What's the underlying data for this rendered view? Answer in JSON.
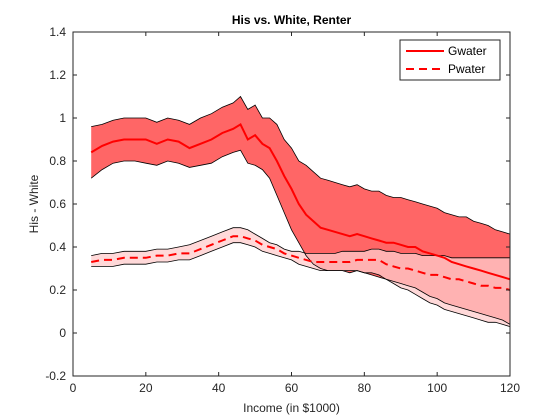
{
  "chart_data": {
    "type": "area",
    "title": "His vs. White, Renter",
    "xlabel": "Income (in $1000)",
    "ylabel": "His - White",
    "xlim": [
      0,
      120
    ],
    "ylim": [
      -0.2,
      1.4
    ],
    "xticks": [
      "0",
      "20",
      "40",
      "60",
      "80",
      "100",
      "120"
    ],
    "yticks": [
      "-0.2",
      "0",
      "0.2",
      "0.4",
      "0.6",
      "0.8",
      "1",
      "1.2",
      "1.4"
    ],
    "grid": false,
    "legend_position": "top-right",
    "x": [
      5,
      8,
      11,
      14,
      17,
      20,
      23,
      26,
      29,
      32,
      35,
      38,
      41,
      44,
      46,
      48,
      50,
      52,
      54,
      56,
      58,
      60,
      62,
      64,
      66,
      68,
      70,
      72,
      74,
      76,
      78,
      80,
      82,
      84,
      86,
      88,
      90,
      92,
      94,
      96,
      98,
      100,
      102,
      104,
      106,
      108,
      110,
      112,
      114,
      116,
      118,
      120
    ],
    "series": [
      {
        "name": "Gwater",
        "style": "solid",
        "color": "#ff0000",
        "band_color": "#ff6666",
        "values": [
          0.84,
          0.87,
          0.89,
          0.9,
          0.9,
          0.9,
          0.88,
          0.9,
          0.89,
          0.86,
          0.88,
          0.9,
          0.93,
          0.95,
          0.97,
          0.9,
          0.92,
          0.88,
          0.86,
          0.8,
          0.73,
          0.67,
          0.6,
          0.55,
          0.52,
          0.49,
          0.48,
          0.47,
          0.46,
          0.45,
          0.46,
          0.45,
          0.44,
          0.43,
          0.42,
          0.42,
          0.41,
          0.4,
          0.4,
          0.38,
          0.37,
          0.36,
          0.35,
          0.33,
          0.32,
          0.31,
          0.3,
          0.29,
          0.28,
          0.27,
          0.26,
          0.25
        ],
        "upper": [
          0.96,
          0.97,
          0.99,
          1.0,
          1.0,
          1.0,
          0.98,
          1.0,
          0.99,
          0.97,
          1.0,
          1.02,
          1.05,
          1.07,
          1.1,
          1.04,
          1.06,
          1.0,
          1.0,
          0.97,
          0.9,
          0.86,
          0.8,
          0.78,
          0.75,
          0.72,
          0.71,
          0.7,
          0.69,
          0.68,
          0.69,
          0.67,
          0.66,
          0.66,
          0.64,
          0.63,
          0.63,
          0.62,
          0.61,
          0.6,
          0.59,
          0.58,
          0.56,
          0.55,
          0.54,
          0.54,
          0.52,
          0.51,
          0.5,
          0.48,
          0.47,
          0.46
        ],
        "lower": [
          0.72,
          0.76,
          0.79,
          0.8,
          0.8,
          0.79,
          0.78,
          0.8,
          0.79,
          0.77,
          0.78,
          0.79,
          0.82,
          0.84,
          0.85,
          0.79,
          0.78,
          0.76,
          0.72,
          0.64,
          0.56,
          0.48,
          0.42,
          0.36,
          0.32,
          0.3,
          0.29,
          0.29,
          0.29,
          0.28,
          0.29,
          0.28,
          0.27,
          0.26,
          0.25,
          0.24,
          0.23,
          0.22,
          0.21,
          0.19,
          0.17,
          0.16,
          0.14,
          0.13,
          0.12,
          0.11,
          0.1,
          0.09,
          0.08,
          0.07,
          0.06,
          0.04
        ]
      },
      {
        "name": "Pwater",
        "style": "dashed",
        "color": "#ff0000",
        "band_color": "#ffcccc",
        "values": [
          0.33,
          0.34,
          0.34,
          0.35,
          0.35,
          0.35,
          0.36,
          0.36,
          0.37,
          0.37,
          0.39,
          0.41,
          0.43,
          0.45,
          0.45,
          0.44,
          0.43,
          0.41,
          0.4,
          0.39,
          0.37,
          0.36,
          0.35,
          0.34,
          0.33,
          0.33,
          0.33,
          0.33,
          0.33,
          0.33,
          0.34,
          0.34,
          0.34,
          0.34,
          0.32,
          0.31,
          0.3,
          0.3,
          0.29,
          0.28,
          0.27,
          0.27,
          0.26,
          0.25,
          0.25,
          0.24,
          0.23,
          0.22,
          0.22,
          0.21,
          0.21,
          0.2
        ],
        "upper": [
          0.36,
          0.37,
          0.37,
          0.38,
          0.38,
          0.38,
          0.39,
          0.39,
          0.4,
          0.41,
          0.43,
          0.45,
          0.47,
          0.49,
          0.49,
          0.48,
          0.46,
          0.44,
          0.42,
          0.41,
          0.39,
          0.38,
          0.38,
          0.37,
          0.37,
          0.37,
          0.37,
          0.37,
          0.38,
          0.38,
          0.38,
          0.38,
          0.39,
          0.39,
          0.38,
          0.38,
          0.37,
          0.37,
          0.37,
          0.36,
          0.36,
          0.36,
          0.36,
          0.35,
          0.35,
          0.35,
          0.35,
          0.35,
          0.35,
          0.35,
          0.35,
          0.35
        ],
        "lower": [
          0.31,
          0.31,
          0.31,
          0.32,
          0.32,
          0.32,
          0.33,
          0.33,
          0.34,
          0.34,
          0.36,
          0.38,
          0.4,
          0.42,
          0.42,
          0.41,
          0.4,
          0.38,
          0.37,
          0.36,
          0.35,
          0.34,
          0.32,
          0.31,
          0.3,
          0.29,
          0.29,
          0.29,
          0.29,
          0.29,
          0.29,
          0.28,
          0.28,
          0.27,
          0.25,
          0.23,
          0.21,
          0.2,
          0.18,
          0.16,
          0.14,
          0.13,
          0.11,
          0.1,
          0.09,
          0.08,
          0.07,
          0.06,
          0.05,
          0.05,
          0.04,
          0.03
        ]
      }
    ]
  }
}
